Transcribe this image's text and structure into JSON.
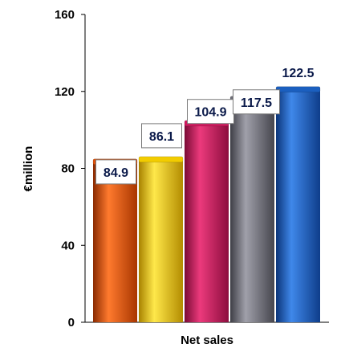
{
  "chart_data": {
    "type": "bar",
    "title": "",
    "xlabel": "Net sales",
    "ylabel": "€million",
    "ylim": [
      0,
      160
    ],
    "yticks": [
      "0",
      "40",
      "80",
      "120",
      "160"
    ],
    "grid": false,
    "legend": "none",
    "categories": [
      "",
      "",
      "",
      "",
      ""
    ],
    "values": [
      84.9,
      86.1,
      104.9,
      117.5,
      122.5
    ],
    "data_labels": [
      "84.9",
      "86.1",
      "104.9",
      "117.5",
      "122.5"
    ],
    "colors": [
      "#e0520a",
      "#f2cc00",
      "#d0185e",
      "#6e6e78",
      "#1b5fbf"
    ]
  }
}
